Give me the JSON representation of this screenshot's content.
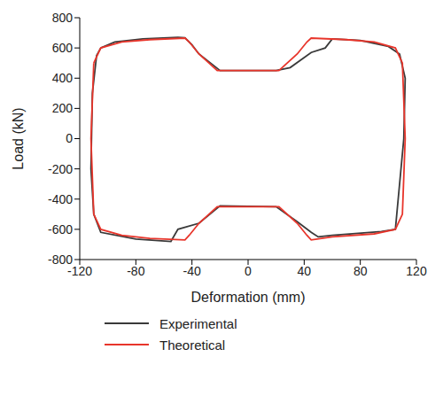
{
  "chart_data": {
    "type": "line",
    "x_label": "Deformation (mm)",
    "y_label": "Load (kN)",
    "xlim": [
      -120,
      120
    ],
    "xticks": [
      -120,
      -80,
      -40,
      0,
      40,
      80,
      120
    ],
    "ylim": [
      -800,
      800
    ],
    "yticks": [
      -800,
      -600,
      -400,
      -200,
      0,
      200,
      400,
      600,
      800
    ],
    "legend": "bottom",
    "series": [
      {
        "name": "Experimental",
        "color": "#3a3a3a",
        "x": [
          -105,
          -95,
          -75,
          -50,
          -45,
          -40,
          -35,
          -20,
          20,
          30,
          45,
          55,
          60,
          80,
          100,
          108,
          112,
          111,
          105,
          95,
          60,
          50,
          45,
          35,
          20,
          -20,
          -35,
          -50,
          -55,
          -80,
          -105,
          -110,
          -112,
          -111,
          -108,
          -105
        ],
        "values": [
          600,
          640,
          660,
          670,
          668,
          620,
          560,
          450,
          450,
          470,
          570,
          600,
          660,
          650,
          610,
          560,
          400,
          0,
          -600,
          -615,
          -640,
          -650,
          -620,
          -550,
          -450,
          -445,
          -560,
          -600,
          -680,
          -665,
          -620,
          -500,
          -200,
          300,
          550,
          600
        ]
      },
      {
        "name": "Theoretical",
        "color": "#e8352b",
        "x": [
          -110,
          -105,
          -90,
          -70,
          -45,
          -42,
          -35,
          -22,
          22,
          35,
          42,
          45,
          70,
          90,
          105,
          110,
          112,
          110,
          105,
          90,
          60,
          45,
          42,
          35,
          22,
          -22,
          -35,
          -42,
          -45,
          -70,
          -90,
          -105,
          -110,
          -112,
          -110
        ],
        "values": [
          500,
          600,
          640,
          655,
          665,
          640,
          560,
          450,
          450,
          560,
          640,
          665,
          655,
          640,
          600,
          500,
          0,
          -500,
          -600,
          -630,
          -650,
          -670,
          -640,
          -560,
          -450,
          -450,
          -560,
          -640,
          -670,
          -660,
          -640,
          -600,
          -500,
          0,
          500
        ]
      }
    ]
  }
}
